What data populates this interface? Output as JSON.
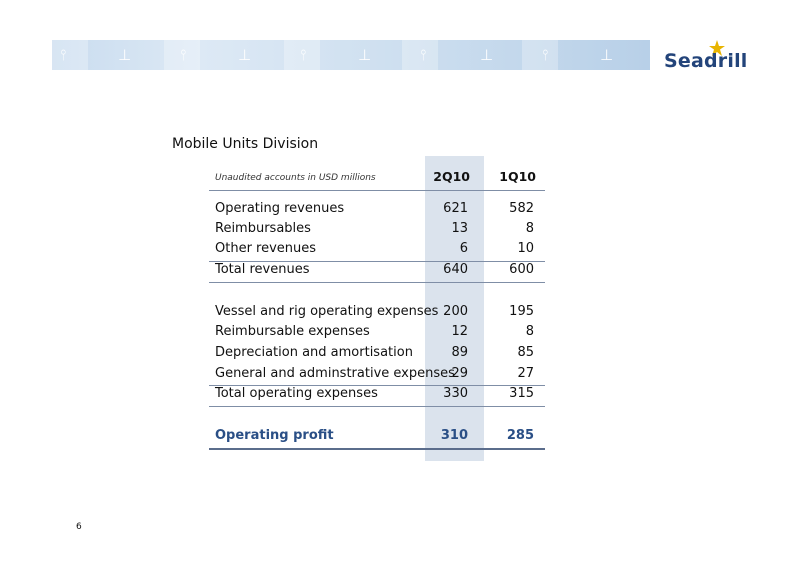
{
  "brand": {
    "logo_text": "Seadrill",
    "accent": "#23447a",
    "star_color": "#e8b400"
  },
  "page_title": "Mobile Units Division",
  "table": {
    "caption": "Unaudited accounts in USD millions",
    "columns": [
      "2Q10",
      "1Q10"
    ],
    "revenue_rows": [
      {
        "label": "Operating revenues",
        "values": [
          "621",
          "582"
        ]
      },
      {
        "label": "Reimbursables",
        "values": [
          "13",
          "8"
        ]
      },
      {
        "label": "Other revenues",
        "values": [
          "6",
          "10"
        ]
      }
    ],
    "total_revenues": {
      "label": "Total revenues",
      "values": [
        "640",
        "600"
      ]
    },
    "expense_rows": [
      {
        "label": "Vessel and rig operating expenses",
        "values": [
          "200",
          "195"
        ]
      },
      {
        "label": "Reimbursable expenses",
        "values": [
          "12",
          "8"
        ]
      },
      {
        "label": "Depreciation and amortisation",
        "values": [
          "89",
          "85"
        ]
      },
      {
        "label": "General and adminstrative expenses",
        "values": [
          "29",
          "27"
        ]
      }
    ],
    "total_expenses": {
      "label": "Total operating expenses",
      "values": [
        "330",
        "315"
      ]
    },
    "operating_profit": {
      "label": "Operating profit",
      "values": [
        "310",
        "285"
      ]
    }
  },
  "page_number": "6",
  "icons": [
    "rig-icon",
    "star-icon"
  ]
}
